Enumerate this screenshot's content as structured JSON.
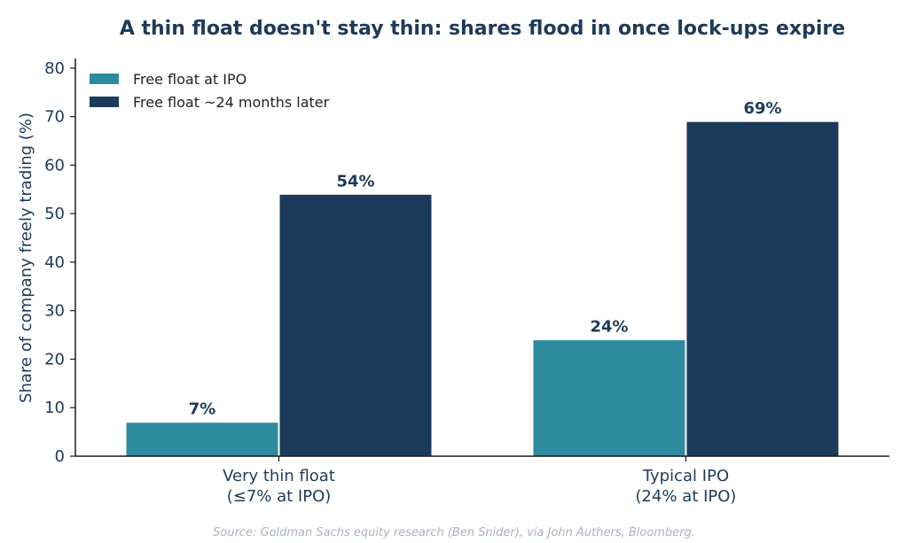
{
  "chart_data": {
    "type": "bar",
    "title": "A thin float doesn't stay thin: shares flood in once lock-ups expire",
    "ylabel": "Share of company freely trading (%)",
    "xlabel": "",
    "ylim": [
      0,
      82
    ],
    "yticks": [
      0,
      10,
      20,
      30,
      40,
      50,
      60,
      70,
      80
    ],
    "categories": [
      [
        "Very thin float",
        "(≤7% at IPO)"
      ],
      [
        "Typical IPO",
        "(24% at IPO)"
      ]
    ],
    "series": [
      {
        "name": "Free float at IPO",
        "values": [
          7,
          24
        ],
        "labels": [
          "7%",
          "24%"
        ],
        "color": "#2e8b9e"
      },
      {
        "name": "Free float ~24 months later",
        "values": [
          54,
          69
        ],
        "labels": [
          "54%",
          "69%"
        ],
        "color": "#1c3a5a"
      }
    ],
    "legend_position": "top-left",
    "grid": false,
    "source": "Source: Goldman Sachs equity research (Ben Snider), via John Authers, Bloomberg."
  }
}
